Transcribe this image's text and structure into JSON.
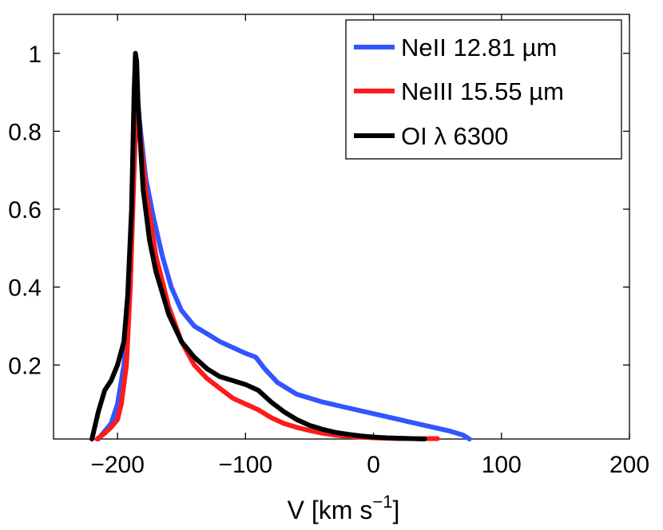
{
  "chart_data": {
    "type": "line",
    "title": "",
    "xlabel": "V [km s",
    "xlabel_sup": "−1",
    "xlabel_close": "]",
    "ylabel": "",
    "xlim": [
      -250,
      200
    ],
    "ylim": [
      0.01,
      1.1
    ],
    "xticks": [
      -200,
      -100,
      0,
      100,
      200
    ],
    "xtick_labels": [
      "−200",
      "−100",
      "0",
      "100",
      "200"
    ],
    "yticks": [
      0.2,
      0.4,
      0.6,
      0.8,
      1.0
    ],
    "ytick_labels": [
      "0.2",
      "0.4",
      "0.6",
      "0.8",
      "1"
    ],
    "grid": false,
    "legend_position": "top-right",
    "series": [
      {
        "name": "NeII 12.81 µm",
        "color": "#3355ff",
        "x": [
          -215,
          -205,
          -200,
          -195,
          -190,
          -187,
          -185,
          -182,
          -178,
          -172,
          -165,
          -158,
          -150,
          -140,
          -130,
          -120,
          -110,
          -100,
          -92,
          -85,
          -75,
          -60,
          -40,
          -20,
          0,
          20,
          40,
          60,
          70,
          75
        ],
        "y": [
          0.01,
          0.05,
          0.1,
          0.2,
          0.4,
          0.75,
          0.9,
          0.8,
          0.68,
          0.58,
          0.48,
          0.4,
          0.34,
          0.3,
          0.28,
          0.26,
          0.245,
          0.23,
          0.22,
          0.19,
          0.155,
          0.125,
          0.105,
          0.09,
          0.075,
          0.06,
          0.045,
          0.03,
          0.02,
          0.01
        ]
      },
      {
        "name": "NeIII 15.55 µm",
        "color": "#ff1a1a",
        "x": [
          -216,
          -210,
          -205,
          -200,
          -197,
          -193,
          -190,
          -187,
          -185,
          -182,
          -178,
          -170,
          -160,
          -150,
          -140,
          -130,
          -120,
          -110,
          -100,
          -90,
          -80,
          -70,
          -60,
          -50,
          -40,
          -30,
          -20,
          -10,
          0,
          10,
          20,
          30,
          40,
          50
        ],
        "y": [
          0.01,
          0.025,
          0.04,
          0.06,
          0.1,
          0.2,
          0.4,
          0.7,
          0.88,
          0.78,
          0.65,
          0.48,
          0.35,
          0.26,
          0.2,
          0.165,
          0.14,
          0.115,
          0.1,
          0.085,
          0.065,
          0.05,
          0.04,
          0.032,
          0.025,
          0.02,
          0.017,
          0.015,
          0.013,
          0.012,
          0.011,
          0.011,
          0.011,
          0.011
        ]
      },
      {
        "name": "OI λ 6300",
        "color": "#000000",
        "x": [
          -220,
          -215,
          -210,
          -205,
          -200,
          -195,
          -192,
          -189,
          -187,
          -186,
          -185,
          -184,
          -182,
          -180,
          -175,
          -170,
          -160,
          -150,
          -140,
          -130,
          -120,
          -110,
          -100,
          -90,
          -80,
          -70,
          -60,
          -50,
          -40,
          -30,
          -20,
          -10,
          0,
          10,
          20,
          30,
          40
        ],
        "y": [
          0.01,
          0.08,
          0.135,
          0.16,
          0.2,
          0.26,
          0.38,
          0.6,
          0.9,
          1.0,
          0.98,
          0.88,
          0.76,
          0.65,
          0.52,
          0.44,
          0.33,
          0.26,
          0.22,
          0.19,
          0.17,
          0.16,
          0.15,
          0.135,
          0.105,
          0.08,
          0.06,
          0.045,
          0.035,
          0.027,
          0.022,
          0.018,
          0.015,
          0.013,
          0.012,
          0.011,
          0.01
        ]
      }
    ]
  }
}
